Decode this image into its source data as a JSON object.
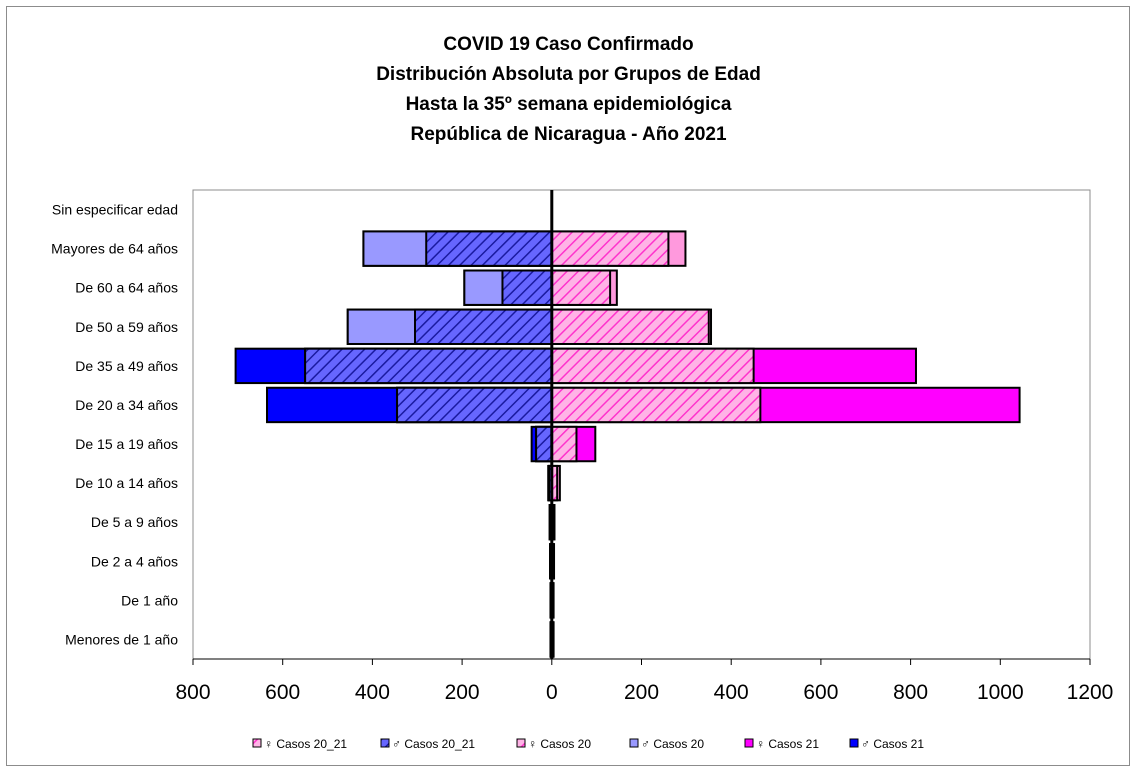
{
  "chart_data": {
    "type": "bar",
    "orientation": "horizontal-pyramid",
    "title_lines": [
      "COVID 19 Caso Confirmado",
      "Distribución Absoluta por Grupos de Edad",
      "Hasta la 35º semana epidemiológica",
      "República de Nicaragua - Año 2021"
    ],
    "categories": [
      "Sin especificar edad",
      "Mayores de 64 años",
      "De 60 a 64 años",
      "De 50 a 59 años",
      "De 35 a 49 años",
      "De 20 a 34 años",
      "De 15 a 19 años",
      "De 10 a 14 años",
      "De 5 a 9 años",
      "De 2 a 4 años",
      "De 1 año",
      "Menores de 1 año"
    ],
    "xlim": [
      -800,
      1200
    ],
    "xticks": [
      -800,
      -600,
      -400,
      -200,
      0,
      200,
      400,
      600,
      800,
      1000,
      1200
    ],
    "xtick_labels": [
      "800",
      "600",
      "400",
      "200",
      "0",
      "200",
      "400",
      "600",
      "800",
      "1000",
      "1200"
    ],
    "grid": false,
    "legend_position": "bottom",
    "series": [
      {
        "name": "♀ Casos 20_21",
        "side": "right",
        "color": "#ff66cc",
        "pattern": "hatch",
        "values": [
          0,
          298,
          145,
          355,
          812,
          1043,
          97,
          18,
          6,
          5,
          4,
          4
        ]
      },
      {
        "name": "♂ Casos 20_21",
        "side": "left",
        "color": "#6666ff",
        "pattern": "hatch",
        "values": [
          0,
          420,
          195,
          455,
          705,
          635,
          45,
          8,
          5,
          4,
          3,
          3
        ]
      },
      {
        "name": "♀ Casos 20",
        "side": "right",
        "color": "#ff99dd",
        "pattern": "hatch",
        "values": [
          0,
          260,
          130,
          350,
          450,
          465,
          55,
          12,
          4,
          3,
          3,
          3
        ]
      },
      {
        "name": "♂ Casos 20",
        "side": "left",
        "color": "#9999ff",
        "pattern": "solid",
        "values": [
          0,
          420,
          195,
          455,
          550,
          345,
          35,
          6,
          3,
          3,
          2,
          2
        ]
      },
      {
        "name": "♀ Casos 21",
        "side": "right",
        "color": "#ff00ff",
        "pattern": "solid",
        "values": [
          0,
          298,
          145,
          355,
          812,
          1043,
          97,
          18,
          6,
          5,
          4,
          4
        ]
      },
      {
        "name": "♂ Casos 21",
        "side": "left",
        "color": "#0000ff",
        "pattern": "solid",
        "values": [
          0,
          420,
          195,
          455,
          705,
          635,
          45,
          8,
          5,
          4,
          3,
          3
        ]
      }
    ],
    "male_total": [
      0,
      420,
      195,
      455,
      705,
      635,
      45,
      8,
      5,
      4,
      3,
      3
    ],
    "male_20": [
      0,
      420,
      195,
      455,
      550,
      345,
      35,
      6,
      3,
      3,
      2,
      2
    ],
    "male_20_21_hatched": [
      0,
      280,
      110,
      305,
      550,
      345,
      35,
      6,
      3,
      3,
      2,
      2
    ],
    "female_total": [
      0,
      298,
      145,
      355,
      812,
      1043,
      97,
      18,
      6,
      5,
      4,
      4
    ],
    "female_20": [
      0,
      260,
      130,
      350,
      450,
      465,
      55,
      12,
      4,
      3,
      3,
      3
    ]
  }
}
